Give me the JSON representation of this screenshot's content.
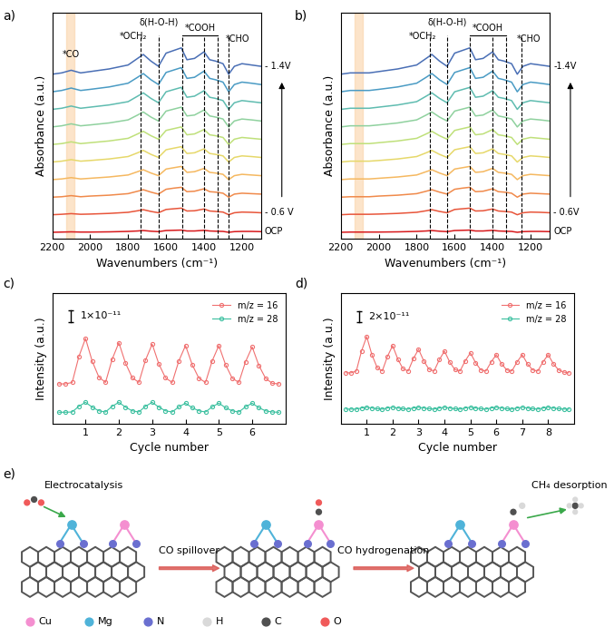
{
  "chart_data": [
    {
      "panel": "a)",
      "type": "line",
      "x_label": "Wavenumbers (cm⁻¹)",
      "y_label": "Absorbance (a.u.)",
      "x": [
        2200,
        2150,
        2100,
        2050,
        2000,
        1900,
        1800,
        1750,
        1720,
        1680,
        1640,
        1600,
        1560,
        1520,
        1490,
        1450,
        1400,
        1370,
        1340,
        1300,
        1270,
        1240,
        1200,
        1150,
        1100
      ],
      "xlim": [
        2200,
        1100
      ],
      "xticks": [
        2200,
        2000,
        1800,
        1600,
        1400,
        1200
      ],
      "ylim": [
        -0.3,
        10.0
      ],
      "yticks": [],
      "tick_labels": "x",
      "series": [
        {
          "color": "#d7191c",
          "values": [
            0,
            0.01,
            0.02,
            0.01,
            0.01,
            0.02,
            0.04,
            0.06,
            0.08,
            0.05,
            0.03,
            0.08,
            0.09,
            0.1,
            0.06,
            0.06,
            0.09,
            0.06,
            0.05,
            0.04,
            0,
            0.03,
            0.04,
            0.04,
            0.03
          ]
        },
        {
          "color": "#e8553a",
          "values": [
            0.8,
            0.82,
            0.85,
            0.82,
            0.83,
            0.86,
            0.91,
            0.98,
            1.03,
            0.95,
            0.89,
            1.04,
            1.07,
            1.1,
            0.97,
            0.98,
            1.06,
            0.97,
            0.95,
            0.92,
            0.8,
            0.89,
            0.92,
            0.91,
            0.89
          ]
        },
        {
          "color": "#f08a4b",
          "values": [
            1.6,
            1.62,
            1.67,
            1.62,
            1.65,
            1.69,
            1.76,
            1.87,
            1.94,
            1.83,
            1.74,
            1.96,
            2.01,
            2.05,
            1.85,
            1.87,
            1.98,
            1.85,
            1.83,
            1.78,
            1.6,
            1.74,
            1.78,
            1.76,
            1.74
          ]
        },
        {
          "color": "#f5b860",
          "values": [
            2.4,
            2.43,
            2.49,
            2.43,
            2.46,
            2.52,
            2.61,
            2.76,
            2.85,
            2.7,
            2.58,
            2.88,
            2.94,
            3.0,
            2.73,
            2.76,
            2.91,
            2.73,
            2.7,
            2.64,
            2.4,
            2.58,
            2.64,
            2.61,
            2.58
          ]
        },
        {
          "color": "#e6d86a",
          "values": [
            3.2,
            3.24,
            3.31,
            3.24,
            3.27,
            3.34,
            3.45,
            3.62,
            3.73,
            3.55,
            3.41,
            3.76,
            3.83,
            3.9,
            3.59,
            3.62,
            3.8,
            3.59,
            3.55,
            3.48,
            3.2,
            3.41,
            3.48,
            3.45,
            3.41
          ]
        },
        {
          "color": "#bfe07a",
          "values": [
            4.0,
            4.04,
            4.12,
            4.04,
            4.08,
            4.16,
            4.28,
            4.48,
            4.6,
            4.4,
            4.24,
            4.64,
            4.72,
            4.8,
            4.44,
            4.48,
            4.68,
            4.44,
            4.4,
            4.32,
            4.0,
            4.24,
            4.32,
            4.28,
            4.24
          ]
        },
        {
          "color": "#8fd19e",
          "values": [
            4.8,
            4.85,
            4.94,
            4.85,
            4.89,
            4.98,
            5.12,
            5.34,
            5.48,
            5.25,
            5.07,
            5.52,
            5.61,
            5.7,
            5.3,
            5.34,
            5.57,
            5.3,
            5.25,
            5.16,
            4.8,
            5.07,
            5.16,
            5.12,
            5.07
          ]
        },
        {
          "color": "#5fbcb0",
          "values": [
            5.6,
            5.65,
            5.75,
            5.65,
            5.7,
            5.8,
            5.95,
            6.2,
            6.35,
            6.1,
            5.9,
            6.4,
            6.5,
            6.6,
            6.15,
            6.2,
            6.45,
            6.15,
            6.1,
            6.0,
            5.6,
            5.9,
            6.0,
            5.95,
            5.9
          ]
        },
        {
          "color": "#4a9bc4",
          "values": [
            6.4,
            6.46,
            6.57,
            6.46,
            6.51,
            6.62,
            6.79,
            7.06,
            7.23,
            6.95,
            6.73,
            7.28,
            7.39,
            7.5,
            7.01,
            7.06,
            7.34,
            7.01,
            6.95,
            6.84,
            6.4,
            6.73,
            6.84,
            6.79,
            6.73
          ]
        },
        {
          "color": "#4a6fb5",
          "values": [
            7.2,
            7.26,
            7.38,
            7.26,
            7.32,
            7.44,
            7.62,
            7.92,
            8.1,
            7.8,
            7.56,
            8.16,
            8.28,
            8.4,
            7.86,
            7.92,
            8.22,
            7.86,
            7.8,
            7.68,
            7.2,
            7.56,
            7.68,
            7.62,
            7.56
          ]
        }
      ],
      "highlight": [
        2125,
        2085
      ],
      "reference_lines": [
        1735,
        1640,
        1515,
        1400,
        1330,
        1270
      ],
      "bracket": [
        1515,
        1330
      ],
      "annotations": [
        {
          "text": "*CO",
          "x": 2100,
          "y": 7.9
        },
        {
          "text": "*OCH₂",
          "x": 1775,
          "y": 8.7
        },
        {
          "text": "δ(H-O-H)",
          "x": 1640,
          "y": 9.35
        },
        {
          "text": "*COOH",
          "x": 1422,
          "y": 9.1
        },
        {
          "text": "*CHO",
          "x": 1225,
          "y": 8.6
        }
      ],
      "side_labels": [
        {
          "text": "- 1.4V",
          "series": 9
        },
        {
          "text": "- 0.6 V",
          "series": 1
        },
        {
          "text": "OCP",
          "series": 0
        }
      ]
    },
    {
      "panel": "b)",
      "type": "line",
      "x_label": "Wavenumbers (cm⁻¹)",
      "y_label": "Absorbance (a.u.)",
      "x": [
        2200,
        2150,
        2100,
        2050,
        2000,
        1900,
        1800,
        1750,
        1720,
        1680,
        1640,
        1600,
        1560,
        1520,
        1490,
        1450,
        1400,
        1370,
        1340,
        1300,
        1270,
        1240,
        1200,
        1150,
        1100
      ],
      "xlim": [
        2200,
        1100
      ],
      "xticks": [
        2200,
        2000,
        1800,
        1600,
        1400,
        1200
      ],
      "ylim": [
        -0.3,
        10.0
      ],
      "yticks": [],
      "tick_labels": "x",
      "series": [
        {
          "color": "#d7191c",
          "values": [
            0,
            0.01,
            0.01,
            0.01,
            0.01,
            0.02,
            0.04,
            0.06,
            0.08,
            0.05,
            0.03,
            0.08,
            0.09,
            0.1,
            0.06,
            0.06,
            0.09,
            0.06,
            0.05,
            0.04,
            0,
            0.03,
            0.04,
            0.04,
            0.03
          ]
        },
        {
          "color": "#e8553a",
          "values": [
            0.8,
            0.82,
            0.82,
            0.82,
            0.83,
            0.86,
            0.91,
            0.98,
            1.03,
            0.95,
            0.89,
            1.04,
            1.07,
            1.1,
            0.97,
            0.98,
            1.06,
            0.97,
            0.95,
            0.92,
            0.8,
            0.89,
            0.92,
            0.91,
            0.89
          ]
        },
        {
          "color": "#f08a4b",
          "values": [
            1.6,
            1.62,
            1.62,
            1.62,
            1.65,
            1.69,
            1.76,
            1.87,
            1.94,
            1.83,
            1.74,
            1.96,
            2.01,
            2.05,
            1.85,
            1.87,
            1.98,
            1.85,
            1.83,
            1.78,
            1.6,
            1.74,
            1.78,
            1.76,
            1.74
          ]
        },
        {
          "color": "#f5b860",
          "values": [
            2.4,
            2.43,
            2.43,
            2.43,
            2.46,
            2.52,
            2.61,
            2.76,
            2.85,
            2.7,
            2.58,
            2.88,
            2.94,
            3.0,
            2.73,
            2.76,
            2.91,
            2.73,
            2.7,
            2.64,
            2.4,
            2.58,
            2.64,
            2.61,
            2.58
          ]
        },
        {
          "color": "#e6d86a",
          "values": [
            3.2,
            3.24,
            3.24,
            3.24,
            3.27,
            3.34,
            3.45,
            3.62,
            3.73,
            3.55,
            3.41,
            3.76,
            3.83,
            3.9,
            3.59,
            3.62,
            3.8,
            3.59,
            3.55,
            3.48,
            3.2,
            3.41,
            3.48,
            3.45,
            3.41
          ]
        },
        {
          "color": "#bfe07a",
          "values": [
            4.0,
            4.04,
            4.04,
            4.04,
            4.08,
            4.16,
            4.28,
            4.48,
            4.6,
            4.4,
            4.24,
            4.64,
            4.72,
            4.8,
            4.44,
            4.48,
            4.68,
            4.44,
            4.4,
            4.32,
            4.0,
            4.24,
            4.32,
            4.28,
            4.24
          ]
        },
        {
          "color": "#8fd19e",
          "values": [
            4.8,
            4.85,
            4.85,
            4.85,
            4.89,
            4.98,
            5.12,
            5.34,
            5.48,
            5.25,
            5.07,
            5.52,
            5.61,
            5.7,
            5.3,
            5.34,
            5.57,
            5.3,
            5.25,
            5.16,
            4.8,
            5.07,
            5.16,
            5.12,
            5.07
          ]
        },
        {
          "color": "#5fbcb0",
          "values": [
            5.6,
            5.65,
            5.65,
            5.65,
            5.7,
            5.8,
            5.95,
            6.2,
            6.35,
            6.1,
            5.9,
            6.4,
            6.5,
            6.6,
            6.15,
            6.2,
            6.45,
            6.15,
            6.1,
            6.0,
            5.6,
            5.9,
            6.0,
            5.95,
            5.9
          ]
        },
        {
          "color": "#4a9bc4",
          "values": [
            6.4,
            6.46,
            6.46,
            6.46,
            6.51,
            6.62,
            6.79,
            7.06,
            7.23,
            6.95,
            6.73,
            7.28,
            7.39,
            7.5,
            7.01,
            7.06,
            7.34,
            7.01,
            6.95,
            6.84,
            6.4,
            6.73,
            6.84,
            6.79,
            6.73
          ]
        },
        {
          "color": "#4a6fb5",
          "values": [
            7.2,
            7.26,
            7.26,
            7.26,
            7.32,
            7.44,
            7.62,
            7.92,
            8.1,
            7.8,
            7.56,
            8.16,
            8.28,
            8.4,
            7.86,
            7.92,
            8.22,
            7.86,
            7.8,
            7.68,
            7.2,
            7.56,
            7.68,
            7.62,
            7.56
          ]
        }
      ],
      "highlight": [
        2125,
        2085
      ],
      "reference_lines": [
        1730,
        1640,
        1520,
        1400,
        1330,
        1250
      ],
      "bracket": [
        1520,
        1330
      ],
      "annotations": [
        {
          "text": "*OCH₂",
          "x": 1770,
          "y": 8.7
        },
        {
          "text": "δ(H-O-H)",
          "x": 1640,
          "y": 9.35
        },
        {
          "text": "*COOH",
          "x": 1425,
          "y": 9.1
        },
        {
          "text": "*CHO",
          "x": 1210,
          "y": 8.6
        }
      ],
      "side_labels": [
        {
          "text": "-1.4V",
          "series": 9
        },
        {
          "text": "- 0.6V",
          "series": 1
        },
        {
          "text": "OCP",
          "series": 0
        }
      ]
    },
    {
      "panel": "c)",
      "type": "line",
      "x_label": "Cycle number",
      "y_label": "Intensity (a.u.)",
      "x": [
        0.2,
        0.4,
        0.6,
        0.8,
        1.0,
        1.2,
        1.4,
        1.6,
        1.8,
        2.0,
        2.2,
        2.4,
        2.6,
        2.8,
        3.0,
        3.2,
        3.4,
        3.6,
        3.8,
        4.0,
        4.2,
        4.4,
        4.6,
        4.8,
        5.0,
        5.2,
        5.4,
        5.6,
        5.8,
        6.0,
        6.2,
        6.4,
        6.6,
        6.8
      ],
      "xlim": [
        0,
        7
      ],
      "xticks": [
        1,
        2,
        3,
        4,
        5,
        6
      ],
      "ylim": [
        -0.4,
        4.2
      ],
      "yticks": [],
      "tick_labels": "x",
      "legend": "upper right",
      "marker": "o",
      "scale_bar": {
        "label": "1×10⁻¹¹",
        "value": 0.4
      },
      "series": [
        {
          "name": "m/z = 16",
          "color": "#f07070",
          "values": [
            1.0,
            1.0,
            1.05,
            1.96,
            2.6,
            1.8,
            1.24,
            1.05,
            1.87,
            2.45,
            1.73,
            1.22,
            1.05,
            1.84,
            2.4,
            1.7,
            1.21,
            1.05,
            1.81,
            2.35,
            1.68,
            1.2,
            1.05,
            1.81,
            2.35,
            1.68,
            1.2,
            1.05,
            1.78,
            2.3,
            1.65,
            1.2,
            1.02,
            1.0
          ]
        },
        {
          "name": "m/z = 28",
          "color": "#3cc0a0",
          "values": [
            0,
            0,
            0.01,
            0.21,
            0.35,
            0.18,
            0.05,
            0.01,
            0.21,
            0.35,
            0.18,
            0.05,
            0.01,
            0.21,
            0.35,
            0.18,
            0.05,
            0.01,
            0.19,
            0.32,
            0.16,
            0.05,
            0.01,
            0.19,
            0.32,
            0.16,
            0.05,
            0.01,
            0.19,
            0.32,
            0.16,
            0.05,
            0.01,
            0
          ]
        }
      ]
    },
    {
      "panel": "d)",
      "type": "line",
      "x_label": "Cycle number",
      "y_label": "Intensity (a.u.)",
      "x": [
        0.2,
        0.4,
        0.6,
        0.8,
        1.0,
        1.2,
        1.4,
        1.6,
        1.8,
        2.0,
        2.2,
        2.4,
        2.6,
        2.8,
        3.0,
        3.2,
        3.4,
        3.6,
        3.8,
        4.0,
        4.2,
        4.4,
        4.6,
        4.8,
        5.0,
        5.2,
        5.4,
        5.6,
        5.8,
        6.0,
        6.2,
        6.4,
        6.6,
        6.8,
        7.0,
        7.2,
        7.4,
        7.6,
        7.8,
        8.0,
        8.2,
        8.4,
        8.6,
        8.8
      ],
      "xlim": [
        0,
        9
      ],
      "xticks": [
        1,
        2,
        3,
        4,
        5,
        6,
        7,
        8
      ],
      "ylim": [
        -0.4,
        3.2
      ],
      "yticks": [],
      "tick_labels": "x",
      "legend": "upper right",
      "marker": "o",
      "scale_bar": {
        "label": "2×10⁻¹¹",
        "value": 0.3
      },
      "series": [
        {
          "name": "m/z = 16",
          "color": "#f07070",
          "values": [
            1.0,
            1.0,
            1.05,
            1.6,
            2.0,
            1.5,
            1.15,
            1.05,
            1.45,
            1.75,
            1.38,
            1.11,
            1.05,
            1.39,
            1.65,
            1.33,
            1.1,
            1.05,
            1.36,
            1.6,
            1.3,
            1.09,
            1.05,
            1.33,
            1.55,
            1.28,
            1.08,
            1.05,
            1.3,
            1.5,
            1.25,
            1.08,
            1.05,
            1.3,
            1.5,
            1.25,
            1.08,
            1.05,
            1.3,
            1.5,
            1.25,
            1.08,
            1.02,
            1.0
          ]
        },
        {
          "name": "m/z = 28",
          "color": "#3cc0a0",
          "values": [
            0,
            0,
            0,
            0.03,
            0.05,
            0.03,
            0.01,
            0,
            0.03,
            0.05,
            0.03,
            0.01,
            0,
            0.03,
            0.05,
            0.03,
            0.01,
            0,
            0.03,
            0.05,
            0.03,
            0.01,
            0,
            0.03,
            0.05,
            0.03,
            0.01,
            0,
            0.03,
            0.05,
            0.03,
            0.01,
            0,
            0.03,
            0.05,
            0.03,
            0.01,
            0,
            0.03,
            0.05,
            0.03,
            0.01,
            0,
            0
          ]
        }
      ]
    }
  ],
  "diagram": {
    "panel": "e)",
    "steps": [
      "Electrocatalysis",
      "CO spillover",
      "CO hydrogenation",
      "CH₄ desorption"
    ],
    "atom_legend": [
      {
        "label": "Cu",
        "color": "#f48fd0"
      },
      {
        "label": "Mg",
        "color": "#4fb3d9"
      },
      {
        "label": "N",
        "color": "#6a6fd0"
      },
      {
        "label": "H",
        "color": "#d9d9d9"
      },
      {
        "label": "C",
        "color": "#505050"
      },
      {
        "label": "O",
        "color": "#f05a5a"
      }
    ]
  }
}
